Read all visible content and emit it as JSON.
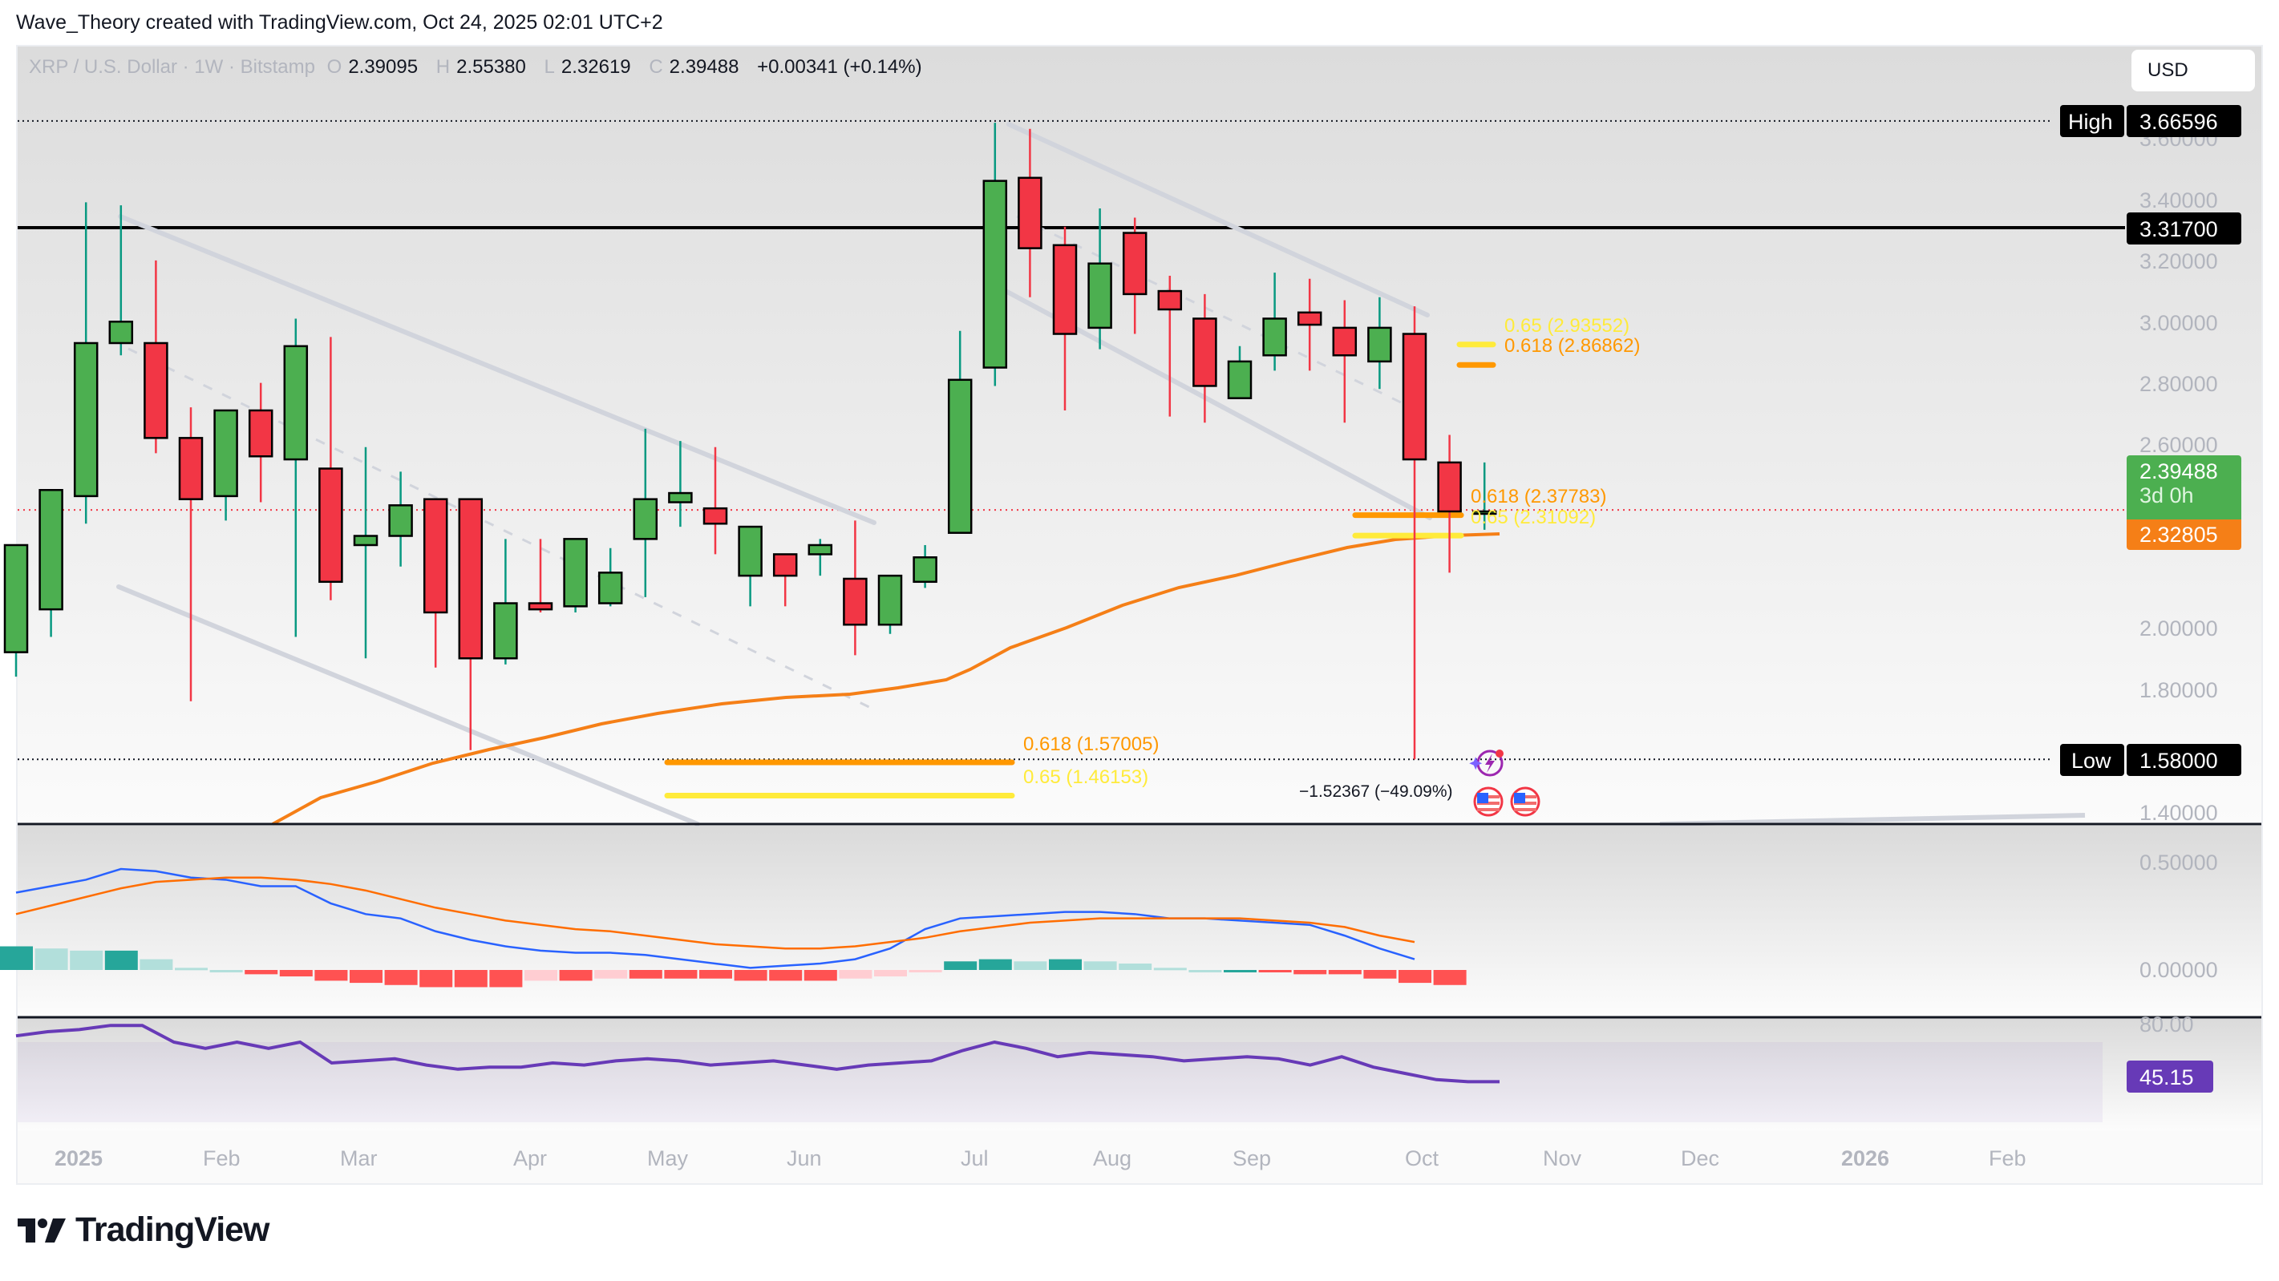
{
  "attribution": "Wave_Theory created with TradingView.com, Oct 24, 2025 02:01 UTC+2",
  "legend": {
    "symbol": "XRP / U.S. Dollar · 1W · Bitstamp",
    "o_label": "O",
    "o": "2.39095",
    "h_label": "H",
    "h": "2.55380",
    "l_label": "L",
    "l": "2.32619",
    "c_label": "C",
    "c": "2.39488",
    "change": "+0.00341 (+0.14%)"
  },
  "currency_button": "USD",
  "price_axis": {
    "ticks": [
      "3.60000",
      "3.40000",
      "3.20000",
      "3.00000",
      "2.80000",
      "2.60000",
      "2.00000",
      "1.80000",
      "1.40000"
    ],
    "high_label": "High",
    "high_value": "3.66596",
    "resistance_value": "3.31700",
    "last_price": "2.39488",
    "countdown": "3d 0h",
    "ema_value": "2.32805",
    "low_label": "Low",
    "low_value": "1.58000"
  },
  "fib_labels": {
    "upper_065": "0.65 (2.93552)",
    "upper_0618": "0.618 (2.86862)",
    "mid_0618": "0.618 (2.37783)",
    "mid_065": "0.65 (2.31092)",
    "low_0618": "0.618 (1.57005)",
    "low_065": "0.65 (1.46153)"
  },
  "measure_label": "−1.52367 (−49.09%)",
  "macd_axis": {
    "ticks": [
      "0.50000",
      "0.00000"
    ]
  },
  "rsi_axis": {
    "ticks": [
      "80.00"
    ],
    "value": "45.15"
  },
  "time_axis": [
    {
      "label": "2025",
      "bold": true
    },
    {
      "label": "Feb"
    },
    {
      "label": "Mar"
    },
    {
      "label": "Apr"
    },
    {
      "label": "May"
    },
    {
      "label": "Jun"
    },
    {
      "label": "Jul"
    },
    {
      "label": "Aug"
    },
    {
      "label": "Sep"
    },
    {
      "label": "Oct"
    },
    {
      "label": "Nov"
    },
    {
      "label": "Dec"
    },
    {
      "label": "2026",
      "bold": true
    },
    {
      "label": "Feb"
    }
  ],
  "brand": "TradingView",
  "colors": {
    "up": "#4caf50",
    "down": "#f23645",
    "up_wick": "#089981",
    "down_wick": "#f23645",
    "ema": "#f57f17",
    "fib_0618": "#ff9800",
    "fib_065": "#ffeb3b",
    "macd": "#2962ff",
    "signal": "#ff6d00",
    "rsi": "#673ab7",
    "hist_up_strong": "#26a69a",
    "hist_up_weak": "#b2dfdb",
    "hist_down_strong": "#ff5252",
    "hist_down_weak": "#ffcdd2",
    "channel": "#d1d4dc"
  },
  "chart_data": [
    {
      "type": "candlestick",
      "title": "XRP / U.S. Dollar · 1W · Bitstamp",
      "xlabel": "",
      "ylabel": "USD",
      "ylim": [
        1.36,
        3.72
      ],
      "x": [
        "2024-12-30",
        "2025-01-06",
        "2025-01-13",
        "2025-01-20",
        "2025-01-27",
        "2025-02-03",
        "2025-02-10",
        "2025-02-17",
        "2025-02-24",
        "2025-03-03",
        "2025-03-10",
        "2025-03-17",
        "2025-03-24",
        "2025-03-31",
        "2025-04-07",
        "2025-04-14",
        "2025-04-21",
        "2025-04-28",
        "2025-05-05",
        "2025-05-12",
        "2025-05-19",
        "2025-05-26",
        "2025-06-02",
        "2025-06-09",
        "2025-06-16",
        "2025-06-23",
        "2025-06-30",
        "2025-07-07",
        "2025-07-14",
        "2025-07-21",
        "2025-07-28",
        "2025-08-04",
        "2025-08-11",
        "2025-08-18",
        "2025-08-25",
        "2025-09-01",
        "2025-09-08",
        "2025-09-15",
        "2025-09-22",
        "2025-09-29",
        "2025-10-06",
        "2025-10-13",
        "2025-10-20"
      ],
      "open": [
        1.93,
        2.07,
        2.44,
        2.94,
        2.94,
        2.63,
        2.44,
        2.72,
        2.56,
        2.53,
        2.28,
        2.31,
        2.43,
        2.43,
        1.91,
        2.09,
        2.08,
        2.09,
        2.3,
        2.42,
        2.4,
        2.18,
        2.25,
        2.25,
        2.17,
        2.02,
        2.16,
        2.32,
        2.86,
        3.48,
        3.26,
        2.99,
        3.3,
        3.11,
        3.02,
        2.76,
        2.9,
        3.04,
        2.99,
        2.88,
        2.97,
        2.55,
        2.39
      ],
      "high": [
        2.18,
        2.38,
        3.4,
        3.39,
        3.21,
        2.73,
        2.72,
        2.81,
        3.02,
        2.96,
        2.6,
        2.52,
        2.43,
        2.18,
        2.3,
        2.3,
        2.23,
        2.27,
        2.66,
        2.62,
        2.6,
        2.29,
        2.24,
        2.3,
        2.36,
        2.17,
        2.28,
        2.98,
        3.66,
        3.64,
        3.32,
        3.38,
        3.35,
        3.16,
        3.1,
        2.93,
        3.17,
        3.15,
        3.08,
        3.09,
        3.06,
        2.64,
        2.55
      ],
      "high_note": "approximate read-off from chart pixels",
      "low": [
        1.85,
        1.98,
        2.35,
        2.9,
        2.58,
        1.77,
        2.36,
        2.42,
        1.98,
        2.1,
        1.91,
        2.21,
        1.88,
        1.61,
        1.89,
        2.06,
        2.06,
        2.08,
        2.11,
        2.34,
        2.25,
        2.08,
        2.08,
        2.18,
        1.92,
        1.99,
        2.14,
        2.32,
        2.8,
        3.09,
        2.72,
        2.92,
        2.97,
        2.7,
        2.68,
        2.76,
        2.85,
        2.85,
        2.68,
        2.79,
        1.58,
        2.19,
        2.33
      ],
      "close": [
        2.28,
        2.46,
        2.94,
        3.01,
        2.63,
        2.43,
        2.72,
        2.57,
        2.93,
        2.16,
        2.31,
        2.41,
        2.06,
        1.91,
        2.09,
        2.07,
        2.3,
        2.19,
        2.43,
        2.45,
        2.35,
        2.34,
        2.18,
        2.28,
        2.02,
        2.18,
        2.24,
        2.82,
        3.47,
        3.25,
        2.97,
        3.2,
        3.1,
        3.05,
        2.8,
        2.88,
        3.02,
        3.0,
        2.9,
        2.99,
        2.56,
        2.39,
        2.39
      ],
      "overlays": {
        "ema_value_last": 2.32805,
        "resistance_line": 3.317,
        "high_line": 3.66596,
        "low_line": 1.58,
        "last_price_line": 2.39488,
        "fib_levels": [
          {
            "ratio": 0.65,
            "price": 2.93552
          },
          {
            "ratio": 0.618,
            "price": 2.86862
          },
          {
            "ratio": 0.618,
            "price": 2.37783
          },
          {
            "ratio": 0.65,
            "price": 2.31092
          },
          {
            "ratio": 0.618,
            "price": 1.57005
          },
          {
            "ratio": 0.65,
            "price": 1.46153
          }
        ],
        "measure": "−1.52367 (−49.09%)"
      }
    },
    {
      "type": "line+bar",
      "title": "MACD",
      "ylim": [
        -0.3,
        0.65
      ],
      "series": [
        {
          "name": "MACD",
          "values": [
            0.36,
            0.39,
            0.42,
            0.47,
            0.46,
            0.43,
            0.42,
            0.39,
            0.39,
            0.31,
            0.26,
            0.24,
            0.18,
            0.14,
            0.11,
            0.09,
            0.08,
            0.08,
            0.07,
            0.05,
            0.03,
            0.01,
            0.02,
            0.03,
            0.05,
            0.1,
            0.19,
            0.24,
            0.25,
            0.26,
            0.27,
            0.27,
            0.26,
            0.24,
            0.24,
            0.23,
            0.22,
            0.21,
            0.16,
            0.1,
            0.05
          ]
        },
        {
          "name": "Signal",
          "values": [
            0.26,
            0.3,
            0.34,
            0.38,
            0.41,
            0.42,
            0.43,
            0.43,
            0.42,
            0.4,
            0.37,
            0.33,
            0.29,
            0.26,
            0.23,
            0.21,
            0.19,
            0.18,
            0.16,
            0.14,
            0.12,
            0.11,
            0.1,
            0.1,
            0.11,
            0.13,
            0.15,
            0.18,
            0.2,
            0.22,
            0.23,
            0.24,
            0.24,
            0.24,
            0.24,
            0.24,
            0.23,
            0.22,
            0.2,
            0.16,
            0.13
          ]
        },
        {
          "name": "Histogram",
          "values": [
            0.11,
            0.1,
            0.09,
            0.09,
            0.05,
            0.01,
            0.0,
            -0.02,
            -0.03,
            -0.05,
            -0.06,
            -0.07,
            -0.08,
            -0.08,
            -0.08,
            -0.05,
            -0.05,
            -0.04,
            -0.04,
            -0.04,
            -0.04,
            -0.05,
            -0.05,
            -0.05,
            -0.04,
            -0.03,
            -0.01,
            0.04,
            0.05,
            0.04,
            0.05,
            0.04,
            0.03,
            0.01,
            0.0,
            0.0,
            -0.01,
            -0.02,
            -0.02,
            -0.04,
            -0.06,
            -0.07
          ]
        }
      ]
    },
    {
      "type": "line",
      "title": "RSI",
      "ylim": [
        30,
        85
      ],
      "series": [
        {
          "name": "RSI",
          "values": [
            73,
            75,
            76,
            78,
            78,
            70,
            67,
            70,
            67,
            70,
            60,
            61,
            62,
            59,
            57,
            58,
            58,
            60,
            59,
            61,
            62,
            61,
            59,
            60,
            61,
            59,
            57,
            59,
            60,
            61,
            66,
            70,
            67,
            63,
            65,
            64,
            63,
            61,
            62,
            63,
            62,
            59,
            63,
            58,
            55,
            52,
            51,
            51
          ]
        }
      ],
      "last_value": 45.15,
      "band": [
        30,
        70
      ]
    }
  ]
}
